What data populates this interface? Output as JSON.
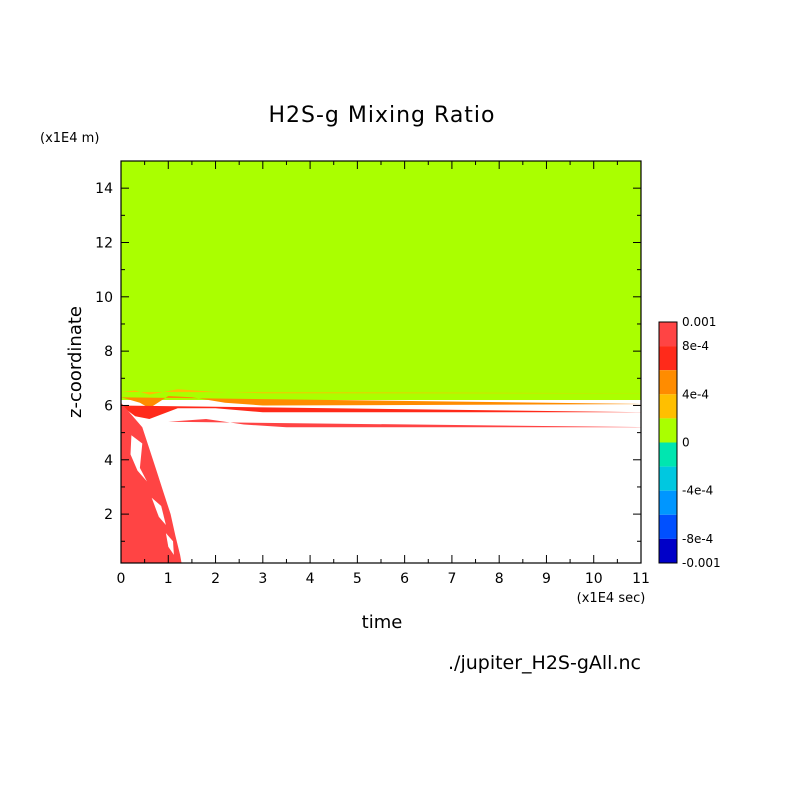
{
  "chart_data": {
    "type": "heatmap",
    "title": "H2S-g Mixing Ratio",
    "xlabel": "time",
    "ylabel": "z-coordinate",
    "x_units": "(x1E4 sec)",
    "y_units": "(x1E4 m)",
    "xlim": [
      0,
      11
    ],
    "ylim": [
      0.2,
      15
    ],
    "x_ticks": [
      "0",
      "1",
      "2",
      "3",
      "4",
      "5",
      "6",
      "7",
      "8",
      "9",
      "10",
      "11"
    ],
    "y_ticks": [
      "2",
      "4",
      "6",
      "8",
      "10",
      "12",
      "14"
    ],
    "colorbar": {
      "min": -0.001,
      "max": 0.001,
      "labels": [
        "0.001",
        "8e-4",
        "4e-4",
        "0",
        "-4e-4",
        "-8e-4",
        "-0.001"
      ],
      "levels": [
        {
          "from": 0.0008,
          "to": 0.001,
          "color": "#ff4444"
        },
        {
          "from": 0.0006,
          "to": 0.0008,
          "color": "#ff2a1a"
        },
        {
          "from": 0.0004,
          "to": 0.0006,
          "color": "#ff8c00"
        },
        {
          "from": 0.0002,
          "to": 0.0004,
          "color": "#ffbf00"
        },
        {
          "from": 0.0,
          "to": 0.0002,
          "color": "#aaff00"
        },
        {
          "from": -0.0002,
          "to": 0.0,
          "color": "#00e6b0"
        },
        {
          "from": -0.0004,
          "to": -0.0002,
          "color": "#00c8e0"
        },
        {
          "from": -0.0006,
          "to": -0.0004,
          "color": "#0096ff"
        },
        {
          "from": -0.0008,
          "to": -0.0006,
          "color": "#0050ff"
        },
        {
          "from": -0.001,
          "to": -0.0008,
          "color": "#0000c8"
        }
      ]
    },
    "regions": [
      {
        "name": "upper-layer",
        "color": "#aaff00"
      },
      {
        "name": "yellow-band",
        "color": "#ffbf00"
      },
      {
        "name": "orange-band",
        "color": "#ff8c00"
      },
      {
        "name": "red-band",
        "color": "#ff2a1a"
      },
      {
        "name": "light-red-band",
        "color": "#ff4444"
      },
      {
        "name": "early-red-region",
        "color": "#ff4444"
      }
    ]
  },
  "footer": {
    "source_file": "./jupiter_H2S-gAll.nc"
  }
}
